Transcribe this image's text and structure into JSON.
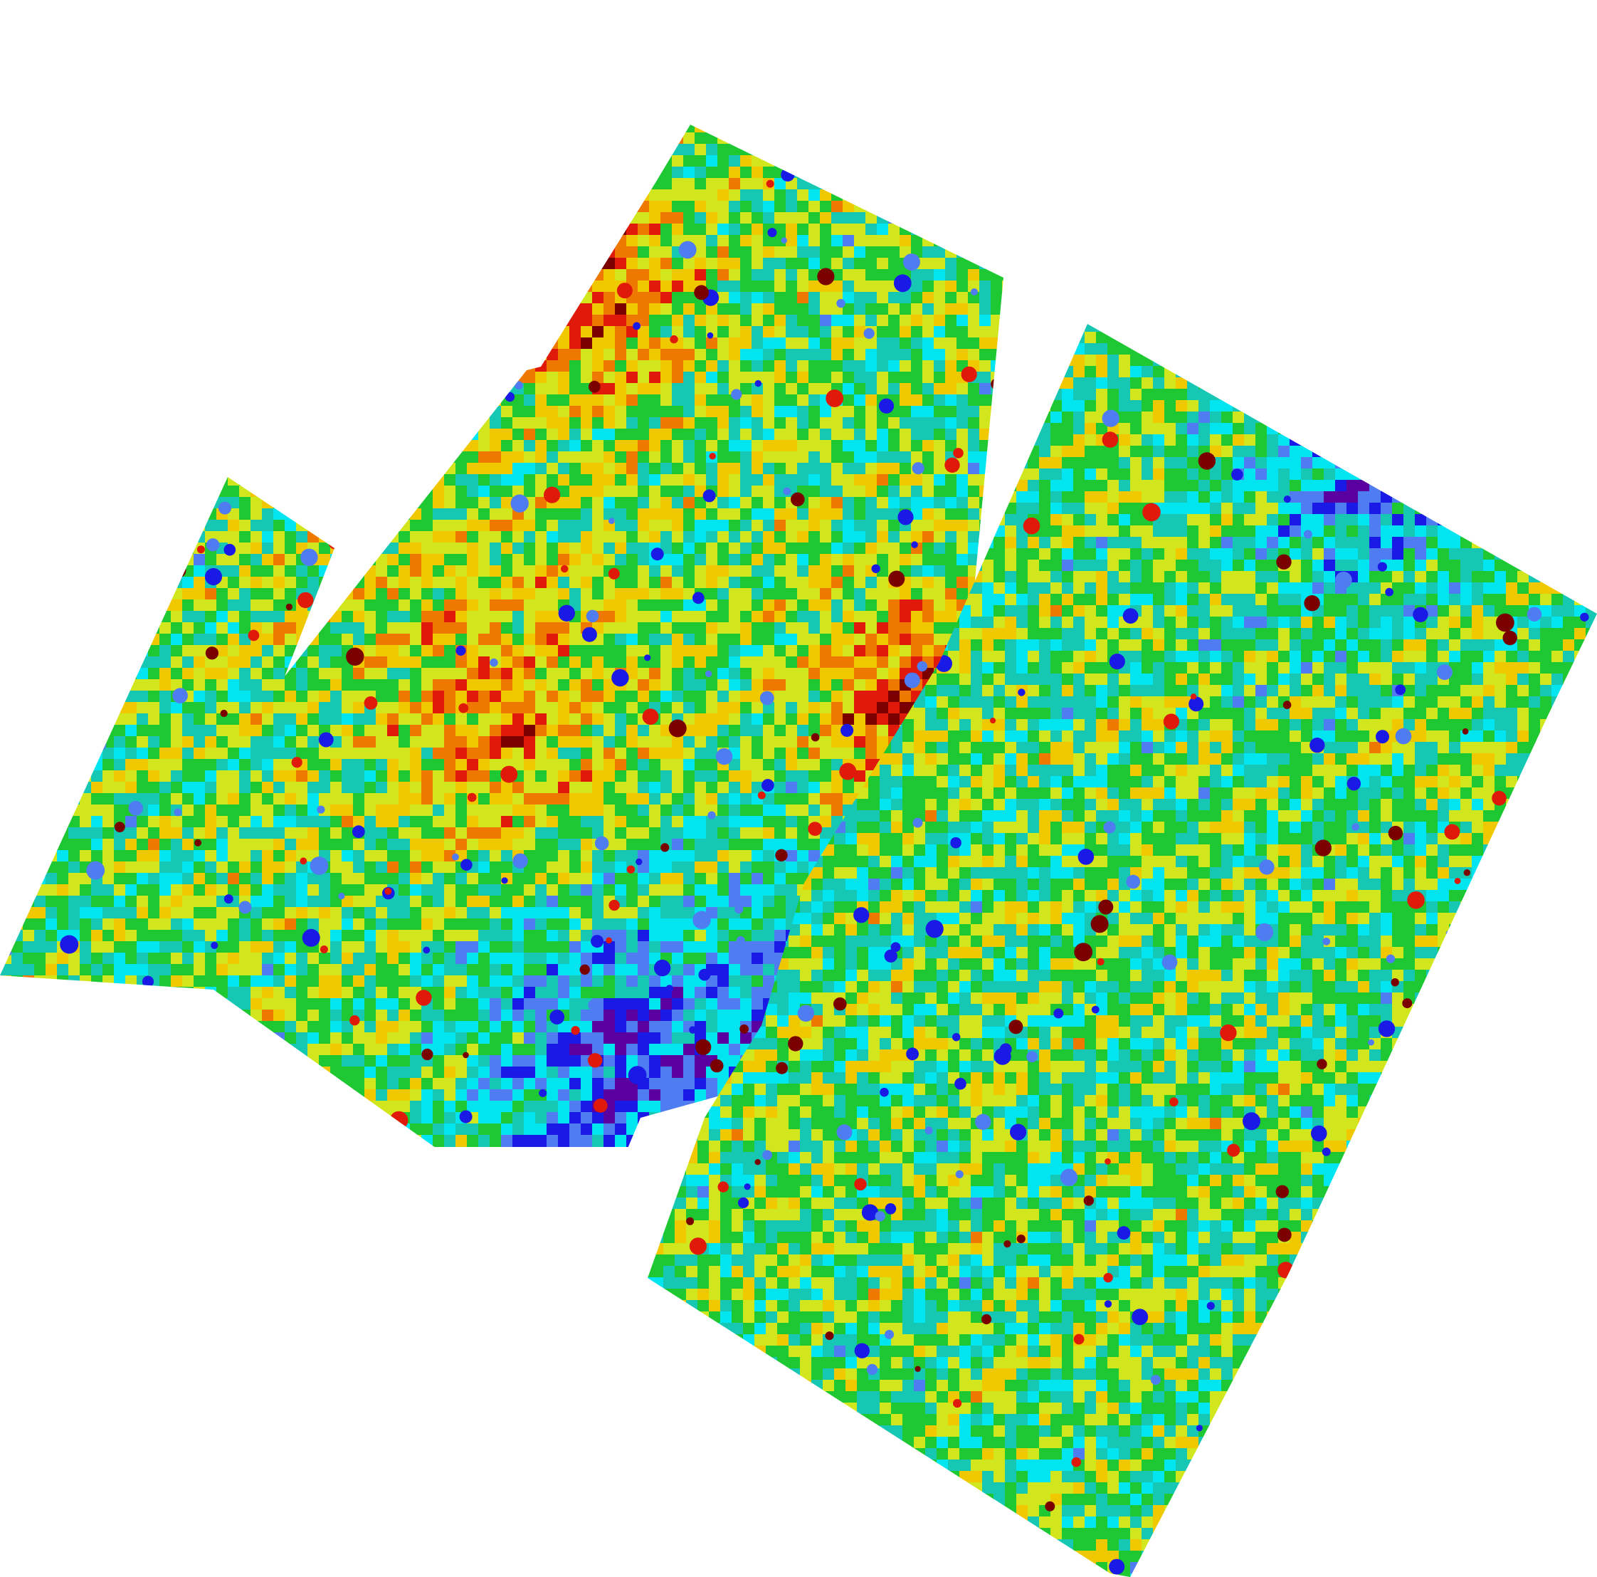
{
  "map": {
    "background": "#ffffff",
    "colormap": [
      "#5a00a0",
      "#1a1ae6",
      "#4f7cf0",
      "#00e5f0",
      "#16c8b4",
      "#1ec832",
      "#d2e61e",
      "#f0c800",
      "#ee7800",
      "#e01a0a",
      "#7a0000"
    ],
    "fields": [
      {
        "name": "west-field",
        "base_level": 0.5,
        "hotspots": [
          {
            "u": 0.07,
            "v": 0.62,
            "level": 0.92,
            "spread": 0.09
          },
          {
            "u": 0.22,
            "v": 0.06,
            "level": 0.85,
            "spread": 0.1
          },
          {
            "u": 0.55,
            "v": 0.42,
            "level": 0.72,
            "spread": 0.12
          },
          {
            "u": 0.3,
            "v": 0.88,
            "level": 0.18,
            "spread": 0.14
          },
          {
            "u": 0.6,
            "v": 0.8,
            "level": 0.15,
            "spread": 0.12
          }
        ]
      },
      {
        "name": "east-field",
        "base_level": 0.5,
        "hotspots": [
          {
            "u": 0.55,
            "v": 0.08,
            "level": 0.12,
            "spread": 0.12
          },
          {
            "u": 0.92,
            "v": 0.3,
            "level": 0.1,
            "spread": 0.1
          },
          {
            "u": 0.88,
            "v": 0.45,
            "level": 0.85,
            "spread": 0.08
          },
          {
            "u": 0.72,
            "v": 0.9,
            "level": 0.9,
            "spread": 0.1
          },
          {
            "u": 0.3,
            "v": 0.7,
            "level": 0.42,
            "spread": 0.15
          }
        ]
      }
    ]
  }
}
